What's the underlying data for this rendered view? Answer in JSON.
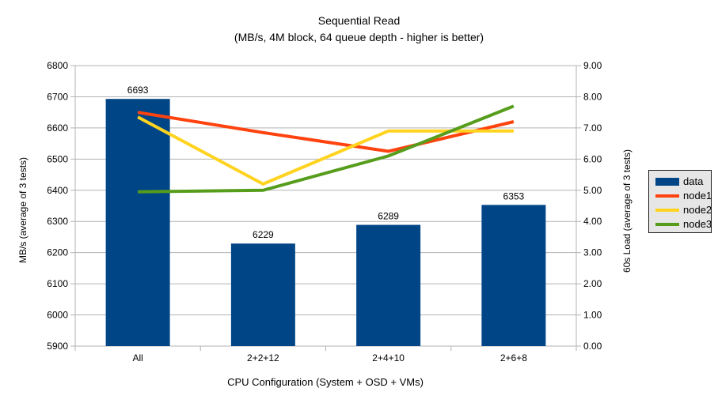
{
  "colors": {
    "background": "#ffffff",
    "text": "#000000",
    "grid": "#b3b3b3",
    "axis": "#b3b3b3",
    "bar": "#004586",
    "node1": "#ff420e",
    "node2": "#ffd320",
    "node3": "#579d1c",
    "legend_bg": "#e6e6e6",
    "legend_border": "#1a1a1a"
  },
  "chart_data": {
    "type": "bar+line",
    "title": "Sequential Read",
    "subtitle": "(MB/s, 4M block, 64 queue depth - higher is better)",
    "xlabel": "CPU Configuration (System + OSD + VMs)",
    "ylabel_left": "MB/s (average of 3 tests)",
    "ylabel_right": "60s Load (average of 3 tests)",
    "categories": [
      "All",
      "2+2+12",
      "2+4+10",
      "2+6+8"
    ],
    "bar_series": {
      "name": "data",
      "axis": "left",
      "color": "#004586",
      "values": [
        6693,
        6229,
        6289,
        6353
      ]
    },
    "bar_labels": [
      "6693",
      "6229",
      "6289",
      "6353"
    ],
    "line_series": [
      {
        "name": "node1",
        "axis": "right",
        "color": "#ff420e",
        "values": [
          7.5,
          6.85,
          6.25,
          7.2
        ]
      },
      {
        "name": "node2",
        "axis": "right",
        "color": "#ffd320",
        "values": [
          7.35,
          5.2,
          6.9,
          6.9
        ]
      },
      {
        "name": "node3",
        "axis": "right",
        "color": "#579d1c",
        "values": [
          4.95,
          5.0,
          6.1,
          7.7
        ]
      }
    ],
    "ylim_left": [
      5900,
      6800
    ],
    "ytick_step_left": 100,
    "yticks_left": [
      "5900",
      "6000",
      "6100",
      "6200",
      "6300",
      "6400",
      "6500",
      "6600",
      "6700",
      "6800"
    ],
    "ylim_right": [
      0,
      9
    ],
    "ytick_step_right": 1,
    "yticks_right": [
      "0.00",
      "1.00",
      "2.00",
      "3.00",
      "4.00",
      "5.00",
      "6.00",
      "7.00",
      "8.00",
      "9.00"
    ],
    "grid": "horizontal",
    "legend_position": "right",
    "legend": [
      "data",
      "node1",
      "node2",
      "node3"
    ]
  }
}
